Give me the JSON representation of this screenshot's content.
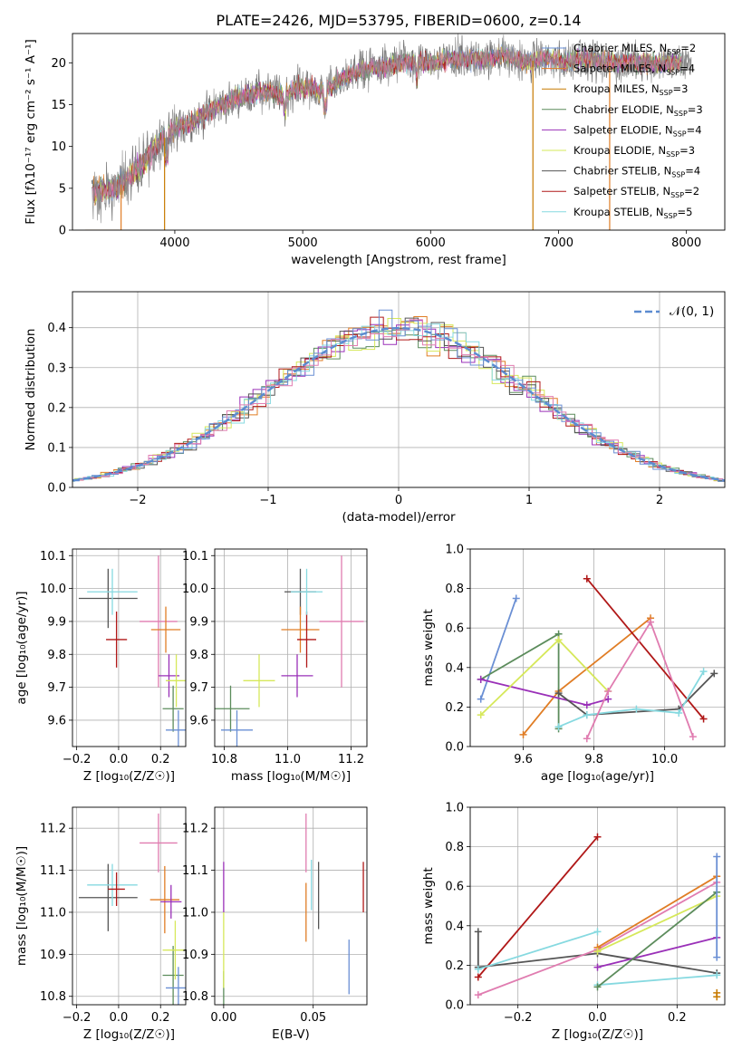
{
  "figure": {
    "title": "PLATE=2426, MJD=53795, FIBERID=0600, z=0.14"
  },
  "series_colors": {
    "Chabrier MILES": "#6a8fd4",
    "Salpeter MILES": "#e07d25",
    "Kroupa MILES": "#c77a00",
    "Chabrier ELODIE": "#5c8c5c",
    "Salpeter ELODIE": "#9a30b8",
    "Kroupa ELODIE": "#d6e85a",
    "Chabrier STELIB": "#555555",
    "Salpeter STELIB": "#b01818",
    "Kroupa STELIB": "#86d9e0",
    "pink": "#e07cb0"
  },
  "chart_data": [
    {
      "id": "spectrum",
      "type": "line",
      "xlabel": "wavelength [Angstrom, rest frame]",
      "ylabel": "Flux [fλ10⁻¹⁷ erg cm⁻² s⁻¹ A⁻¹]",
      "xlim": [
        3200,
        8300
      ],
      "ylim": [
        0,
        23.5
      ],
      "xticks": [
        4000,
        5000,
        6000,
        7000,
        8000
      ],
      "yticks": [
        0,
        5,
        10,
        15,
        20
      ],
      "legend_position": "top-right",
      "legend": [
        {
          "label": "Chabrier MILES, N",
          "sub": "SSP",
          "suffix": "=2",
          "color": "#6a8fd4"
        },
        {
          "label": "Salpeter MILES, N",
          "sub": "SSP",
          "suffix": "=4",
          "color": "#e07d25"
        },
        {
          "label": "Kroupa MILES, N",
          "sub": "SSP",
          "suffix": "=3",
          "color": "#c77a00"
        },
        {
          "label": "Chabrier ELODIE, N",
          "sub": "SSP",
          "suffix": "=3",
          "color": "#5c8c5c"
        },
        {
          "label": "Salpeter ELODIE, N",
          "sub": "SSP",
          "suffix": "=4",
          "color": "#9a30b8"
        },
        {
          "label": "Kroupa ELODIE, N",
          "sub": "SSP",
          "suffix": "=3",
          "color": "#d6e85a"
        },
        {
          "label": "Chabrier STELIB, N",
          "sub": "SSP",
          "suffix": "=4",
          "color": "#555555"
        },
        {
          "label": "Salpeter STELIB, N",
          "sub": "SSP",
          "suffix": "=2",
          "color": "#b01818"
        },
        {
          "label": "Kroupa STELIB, N",
          "sub": "SSP",
          "suffix": "=5",
          "color": "#86d9e0"
        }
      ],
      "continuum": [
        [
          3350,
          4.5
        ],
        [
          3450,
          4.8
        ],
        [
          3550,
          5.0
        ],
        [
          3650,
          6.5
        ],
        [
          3750,
          8.0
        ],
        [
          3850,
          10.0
        ],
        [
          3950,
          11.5
        ],
        [
          4050,
          12.5
        ],
        [
          4150,
          13.0
        ],
        [
          4250,
          14.0
        ],
        [
          4350,
          15.0
        ],
        [
          4450,
          15.5
        ],
        [
          4550,
          16.0
        ],
        [
          4650,
          16.5
        ],
        [
          4750,
          16.5
        ],
        [
          4850,
          16.0
        ],
        [
          4950,
          17.0
        ],
        [
          5050,
          17.0
        ],
        [
          5150,
          16.5
        ],
        [
          5250,
          17.5
        ],
        [
          5350,
          18.5
        ],
        [
          5450,
          19.0
        ],
        [
          5550,
          19.5
        ],
        [
          5650,
          19.5
        ],
        [
          5750,
          20.0
        ],
        [
          5850,
          20.0
        ],
        [
          5950,
          20.0
        ],
        [
          6050,
          20.0
        ],
        [
          6150,
          20.5
        ],
        [
          6250,
          20.5
        ],
        [
          6350,
          20.5
        ],
        [
          6450,
          20.5
        ],
        [
          6550,
          21.0
        ],
        [
          6650,
          20.5
        ],
        [
          6750,
          20.0
        ],
        [
          6850,
          20.5
        ],
        [
          6950,
          20.5
        ],
        [
          7050,
          20.0
        ],
        [
          7150,
          20.5
        ],
        [
          7250,
          20.5
        ],
        [
          7350,
          20.0
        ],
        [
          7450,
          20.0
        ],
        [
          7550,
          20.0
        ],
        [
          7650,
          20.0
        ],
        [
          7750,
          20.0
        ],
        [
          7850,
          20.0
        ],
        [
          7950,
          20.0
        ],
        [
          8050,
          20.0
        ]
      ],
      "drops": [
        {
          "wavelength": 3580,
          "color": "#e07d25",
          "from": 3300
        },
        {
          "wavelength": 3920,
          "color": "#c77a00"
        },
        {
          "wavelength": 6800,
          "color": "#c77a00"
        },
        {
          "wavelength": 7400,
          "color": "#e07d25"
        }
      ]
    },
    {
      "id": "residuals",
      "type": "bar",
      "xlabel": "(data-model)/error",
      "ylabel": "Normed distribution",
      "xlim": [
        -2.5,
        2.5
      ],
      "ylim": [
        0,
        0.49
      ],
      "xticks": [
        -2,
        -1,
        0,
        1,
        2
      ],
      "yticks": [
        0.0,
        0.1,
        0.2,
        0.3,
        0.4
      ],
      "bin_width": 0.1,
      "legend_position": "top-right",
      "legend": [
        {
          "label": "𝒩(0, 1)",
          "style": "dashed",
          "color": "#5b8bd0"
        }
      ],
      "histogram_colors": [
        "#e07d25",
        "#5c8c5c",
        "#9a30b8",
        "#d6e85a",
        "#555555",
        "#b01818",
        "#86d9e0",
        "#6a8fd4",
        "#e07cb0"
      ]
    },
    {
      "id": "z-age",
      "type": "scatter",
      "xlabel": "Z [log₁₀(Z/Z☉)]",
      "ylabel": "age  [log₁₀(age/yr)]",
      "xlim": [
        -0.22,
        0.32
      ],
      "ylim": [
        9.52,
        10.12
      ],
      "xticks": [
        -0.2,
        0.0,
        0.2
      ],
      "yticks": [
        9.6,
        9.7,
        9.8,
        9.9,
        10.0,
        10.1
      ],
      "points": [
        {
          "x": -0.05,
          "y": 9.97,
          "xerr": 0.14,
          "yerr": 0.09,
          "color": "#555555"
        },
        {
          "x": -0.03,
          "y": 9.99,
          "xerr": 0.12,
          "yerr": 0.07,
          "color": "#86d9e0"
        },
        {
          "x": -0.01,
          "y": 9.845,
          "xerr": 0.05,
          "yerr": 0.085,
          "color": "#b01818"
        },
        {
          "x": 0.19,
          "y": 9.9,
          "xerr": 0.09,
          "yerr": 0.2,
          "color": "#e07cb0"
        },
        {
          "x": 0.225,
          "y": 9.875,
          "xerr": 0.07,
          "yerr": 0.07,
          "color": "#e07d25"
        },
        {
          "x": 0.24,
          "y": 9.735,
          "xerr": 0.05,
          "yerr": 0.065,
          "color": "#9a30b8"
        },
        {
          "x": 0.26,
          "y": 9.635,
          "xerr": 0.05,
          "yerr": 0.07,
          "color": "#5c8c5c"
        },
        {
          "x": 0.285,
          "y": 9.57,
          "xerr": 0.06,
          "yerr": 0.06,
          "color": "#6a8fd4"
        },
        {
          "x": 0.275,
          "y": 9.72,
          "xerr": 0.05,
          "yerr": 0.08,
          "color": "#d6e85a"
        }
      ]
    },
    {
      "id": "mass-age",
      "type": "scatter",
      "xlabel": "mass [log₁₀(M/M☉)]",
      "ylabel": "",
      "xlim": [
        10.77,
        11.25
      ],
      "ylim": [
        9.52,
        10.12
      ],
      "xticks": [
        10.8,
        11.0,
        11.2
      ],
      "yticks": [
        9.6,
        9.7,
        9.8,
        9.9,
        10.0,
        10.1
      ],
      "points": [
        {
          "x": 10.82,
          "y": 9.635,
          "xerr": 0.06,
          "yerr": 0.07,
          "color": "#5c8c5c"
        },
        {
          "x": 10.84,
          "y": 9.57,
          "xerr": 0.05,
          "yerr": 0.06,
          "color": "#6a8fd4"
        },
        {
          "x": 10.91,
          "y": 9.72,
          "xerr": 0.05,
          "yerr": 0.08,
          "color": "#d6e85a"
        },
        {
          "x": 11.03,
          "y": 9.735,
          "xerr": 0.05,
          "yerr": 0.065,
          "color": "#9a30b8"
        },
        {
          "x": 11.04,
          "y": 9.99,
          "xerr": 0.05,
          "yerr": 0.07,
          "color": "#555555"
        },
        {
          "x": 11.04,
          "y": 9.875,
          "xerr": 0.06,
          "yerr": 0.07,
          "color": "#e07d25"
        },
        {
          "x": 11.06,
          "y": 9.845,
          "xerr": 0.03,
          "yerr": 0.085,
          "color": "#b01818"
        },
        {
          "x": 11.06,
          "y": 9.99,
          "xerr": 0.05,
          "yerr": 0.07,
          "color": "#86d9e0"
        },
        {
          "x": 11.17,
          "y": 9.9,
          "xerr": 0.07,
          "yerr": 0.2,
          "color": "#e07cb0"
        }
      ]
    },
    {
      "id": "age-weight",
      "type": "line",
      "xlabel": "age  [log₁₀(age/yr)]",
      "ylabel": "mass weight",
      "xlim": [
        9.45,
        10.17
      ],
      "ylim": [
        0,
        1.0
      ],
      "xticks": [
        9.6,
        9.8,
        10.0
      ],
      "yticks": [
        0.0,
        0.2,
        0.4,
        0.6,
        0.8,
        1.0
      ],
      "series": [
        {
          "color": "#6a8fd4",
          "points": [
            [
              9.48,
              0.24
            ],
            [
              9.58,
              0.75
            ]
          ]
        },
        {
          "color": "#e07d25",
          "points": [
            [
              9.6,
              0.06
            ],
            [
              9.7,
              0.28
            ],
            [
              9.96,
              0.65
            ]
          ]
        },
        {
          "color": "#5c8c5c",
          "points": [
            [
              9.48,
              0.34
            ],
            [
              9.7,
              0.57
            ],
            [
              9.7,
              0.09
            ]
          ]
        },
        {
          "color": "#9a30b8",
          "points": [
            [
              9.48,
              0.34
            ],
            [
              9.78,
              0.21
            ],
            [
              9.84,
              0.24
            ]
          ]
        },
        {
          "color": "#d6e85a",
          "points": [
            [
              9.48,
              0.16
            ],
            [
              9.7,
              0.54
            ],
            [
              9.84,
              0.28
            ]
          ]
        },
        {
          "color": "#555555",
          "points": [
            [
              9.7,
              0.27
            ],
            [
              9.78,
              0.16
            ],
            [
              10.04,
              0.19
            ],
            [
              10.14,
              0.37
            ]
          ]
        },
        {
          "color": "#b01818",
          "points": [
            [
              9.78,
              0.85
            ],
            [
              10.11,
              0.14
            ]
          ]
        },
        {
          "color": "#86d9e0",
          "points": [
            [
              9.7,
              0.1
            ],
            [
              9.78,
              0.16
            ],
            [
              9.92,
              0.19
            ],
            [
              10.04,
              0.17
            ],
            [
              10.11,
              0.38
            ]
          ]
        },
        {
          "color": "#e07cb0",
          "points": [
            [
              9.78,
              0.04
            ],
            [
              9.84,
              0.28
            ],
            [
              9.96,
              0.63
            ],
            [
              10.08,
              0.05
            ]
          ]
        }
      ]
    },
    {
      "id": "z-mass",
      "type": "scatter",
      "xlabel": "Z [log₁₀(Z/Z☉)]",
      "ylabel": "mass [log₁₀(M/M☉)]",
      "xlim": [
        -0.22,
        0.32
      ],
      "ylim": [
        10.78,
        11.25
      ],
      "xticks": [
        -0.2,
        0.0,
        0.2
      ],
      "yticks": [
        10.8,
        10.9,
        11.0,
        11.1,
        11.2
      ],
      "points": [
        {
          "x": -0.05,
          "y": 11.035,
          "xerr": 0.14,
          "yerr": 0.08,
          "color": "#555555"
        },
        {
          "x": -0.03,
          "y": 11.065,
          "xerr": 0.12,
          "yerr": 0.05,
          "color": "#86d9e0"
        },
        {
          "x": -0.01,
          "y": 11.055,
          "xerr": 0.04,
          "yerr": 0.04,
          "color": "#b01818"
        },
        {
          "x": 0.19,
          "y": 11.165,
          "xerr": 0.09,
          "yerr": 0.07,
          "color": "#e07cb0"
        },
        {
          "x": 0.22,
          "y": 11.03,
          "xerr": 0.07,
          "yerr": 0.08,
          "color": "#e07d25"
        },
        {
          "x": 0.25,
          "y": 11.025,
          "xerr": 0.05,
          "yerr": 0.04,
          "color": "#9a30b8"
        },
        {
          "x": 0.26,
          "y": 10.85,
          "xerr": 0.05,
          "yerr": 0.07,
          "color": "#5c8c5c"
        },
        {
          "x": 0.285,
          "y": 10.82,
          "xerr": 0.06,
          "yerr": 0.05,
          "color": "#6a8fd4"
        },
        {
          "x": 0.27,
          "y": 10.91,
          "xerr": 0.06,
          "yerr": 0.07,
          "color": "#d6e85a"
        }
      ]
    },
    {
      "id": "ebv-mass",
      "type": "scatter",
      "xlabel": "E(B-V)",
      "ylabel": "",
      "xlim": [
        -0.005,
        0.08
      ],
      "ylim": [
        10.78,
        11.25
      ],
      "xticks": [
        0.0,
        0.05
      ],
      "yticks": [
        10.8,
        10.9,
        11.0,
        11.1,
        11.2
      ],
      "points": [
        {
          "x": 0.0,
          "y": 10.82,
          "yerr": 0.04,
          "color": "#5c8c5c"
        },
        {
          "x": 0.0,
          "y": 10.91,
          "yerr": 0.09,
          "color": "#d6e85a"
        },
        {
          "x": 0.0,
          "y": 11.06,
          "yerr": 0.06,
          "color": "#9a30b8"
        },
        {
          "x": 0.046,
          "y": 11.165,
          "yerr": 0.07,
          "color": "#e07cb0"
        },
        {
          "x": 0.046,
          "y": 11.0,
          "yerr": 0.07,
          "color": "#e07d25"
        },
        {
          "x": 0.049,
          "y": 11.065,
          "yerr": 0.06,
          "color": "#86d9e0"
        },
        {
          "x": 0.053,
          "y": 11.04,
          "yerr": 0.08,
          "color": "#555555"
        },
        {
          "x": 0.07,
          "y": 10.87,
          "yerr": 0.065,
          "color": "#6a8fd4"
        },
        {
          "x": 0.078,
          "y": 11.06,
          "yerr": 0.06,
          "color": "#b01818"
        }
      ]
    },
    {
      "id": "z-weight",
      "type": "line",
      "xlabel": "Z [log₁₀(Z/Z☉)]",
      "ylabel": "mass weight",
      "xlim": [
        -0.32,
        0.32
      ],
      "ylim": [
        0,
        1.0
      ],
      "xticks": [
        -0.2,
        0.0,
        0.2
      ],
      "yticks": [
        0.0,
        0.2,
        0.4,
        0.6,
        0.8,
        1.0
      ],
      "series": [
        {
          "color": "#b01818",
          "points": [
            [
              -0.3,
              0.14
            ],
            [
              0.0,
              0.85
            ]
          ]
        },
        {
          "color": "#555555",
          "points": [
            [
              -0.3,
              0.37
            ],
            [
              -0.3,
              0.19
            ],
            [
              0.0,
              0.26
            ],
            [
              0.3,
              0.16
            ]
          ]
        },
        {
          "color": "#86d9e0",
          "points": [
            [
              -0.3,
              0.18
            ],
            [
              0.0,
              0.37
            ]
          ]
        },
        {
          "color": "#86d9e0",
          "points": [
            [
              0.0,
              0.1
            ],
            [
              0.3,
              0.15
            ]
          ]
        },
        {
          "color": "#e07cb0",
          "points": [
            [
              -0.3,
              0.05
            ],
            [
              0.0,
              0.28
            ],
            [
              0.3,
              0.62
            ]
          ]
        },
        {
          "color": "#e07d25",
          "points": [
            [
              0.0,
              0.29
            ],
            [
              0.3,
              0.65
            ]
          ]
        },
        {
          "color": "#d6e85a",
          "points": [
            [
              0.0,
              0.27
            ],
            [
              0.3,
              0.55
            ]
          ]
        },
        {
          "color": "#9a30b8",
          "points": [
            [
              0.0,
              0.19
            ],
            [
              0.3,
              0.34
            ]
          ]
        },
        {
          "color": "#5c8c5c",
          "points": [
            [
              0.0,
              0.09
            ],
            [
              0.3,
              0.57
            ]
          ]
        },
        {
          "color": "#6a8fd4",
          "points": [
            [
              0.3,
              0.75
            ],
            [
              0.3,
              0.24
            ]
          ]
        },
        {
          "color": "#c77a00",
          "points": [
            [
              0.3,
              0.06
            ],
            [
              0.3,
              0.04
            ]
          ]
        }
      ]
    }
  ]
}
